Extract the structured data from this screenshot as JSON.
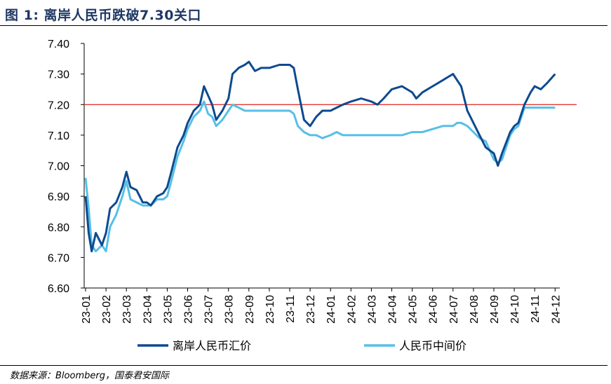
{
  "header": {
    "title": "图 1:  离岸人民币跌破7.30关口"
  },
  "footer": {
    "source": "数据来源：Bloomberg，国泰君安国际"
  },
  "colors": {
    "offshore": "#0d4a8f",
    "central": "#56bfe8",
    "threshold": "#e02020"
  },
  "chart_data": {
    "type": "line",
    "title": "离岸人民币跌破7.30关口",
    "ylim": [
      6.6,
      7.4
    ],
    "yticks": [
      "6.60",
      "6.70",
      "6.80",
      "6.90",
      "7.00",
      "7.10",
      "7.20",
      "7.30",
      "7.40"
    ],
    "x": [
      "23-01",
      "23-02",
      "23-03",
      "23-04",
      "23-05",
      "23-06",
      "23-07",
      "23-08",
      "23-09",
      "23-10",
      "23-11",
      "23-12",
      "24-01",
      "24-02",
      "24-03",
      "24-04",
      "24-05",
      "24-06",
      "24-07",
      "24-08",
      "24-09",
      "24-10",
      "24-11",
      "24-12"
    ],
    "reference_line": {
      "y": 7.2
    },
    "legend_position": "bottom",
    "series": [
      {
        "name": "离岸人民币汇价",
        "points": [
          [
            0.0,
            6.9
          ],
          [
            0.15,
            6.78
          ],
          [
            0.3,
            6.72
          ],
          [
            0.5,
            6.78
          ],
          [
            0.8,
            6.74
          ],
          [
            1.0,
            6.78
          ],
          [
            1.2,
            6.86
          ],
          [
            1.5,
            6.88
          ],
          [
            1.8,
            6.93
          ],
          [
            2.0,
            6.98
          ],
          [
            2.2,
            6.93
          ],
          [
            2.5,
            6.92
          ],
          [
            2.8,
            6.88
          ],
          [
            3.0,
            6.88
          ],
          [
            3.2,
            6.87
          ],
          [
            3.5,
            6.9
          ],
          [
            3.8,
            6.91
          ],
          [
            4.0,
            6.93
          ],
          [
            4.2,
            6.98
          ],
          [
            4.5,
            7.06
          ],
          [
            4.8,
            7.1
          ],
          [
            5.0,
            7.14
          ],
          [
            5.3,
            7.18
          ],
          [
            5.6,
            7.2
          ],
          [
            5.8,
            7.26
          ],
          [
            6.0,
            7.23
          ],
          [
            6.2,
            7.2
          ],
          [
            6.4,
            7.15
          ],
          [
            6.7,
            7.18
          ],
          [
            7.0,
            7.22
          ],
          [
            7.2,
            7.3
          ],
          [
            7.5,
            7.32
          ],
          [
            7.8,
            7.33
          ],
          [
            8.0,
            7.34
          ],
          [
            8.3,
            7.31
          ],
          [
            8.6,
            7.32
          ],
          [
            9.0,
            7.32
          ],
          [
            9.5,
            7.33
          ],
          [
            10.0,
            7.33
          ],
          [
            10.2,
            7.32
          ],
          [
            10.4,
            7.25
          ],
          [
            10.7,
            7.15
          ],
          [
            11.0,
            7.13
          ],
          [
            11.3,
            7.16
          ],
          [
            11.6,
            7.18
          ],
          [
            12.0,
            7.18
          ],
          [
            12.3,
            7.19
          ],
          [
            12.6,
            7.2
          ],
          [
            13.0,
            7.21
          ],
          [
            13.5,
            7.22
          ],
          [
            14.0,
            7.21
          ],
          [
            14.3,
            7.2
          ],
          [
            14.6,
            7.22
          ],
          [
            15.0,
            7.25
          ],
          [
            15.5,
            7.26
          ],
          [
            16.0,
            7.24
          ],
          [
            16.2,
            7.22
          ],
          [
            16.5,
            7.24
          ],
          [
            17.0,
            7.26
          ],
          [
            17.5,
            7.28
          ],
          [
            18.0,
            7.3
          ],
          [
            18.2,
            7.28
          ],
          [
            18.4,
            7.26
          ],
          [
            18.7,
            7.18
          ],
          [
            19.0,
            7.14
          ],
          [
            19.3,
            7.1
          ],
          [
            19.6,
            7.06
          ],
          [
            20.0,
            7.04
          ],
          [
            20.2,
            7.0
          ],
          [
            20.4,
            7.04
          ],
          [
            20.8,
            7.11
          ],
          [
            21.0,
            7.13
          ],
          [
            21.2,
            7.14
          ],
          [
            21.5,
            7.2
          ],
          [
            21.8,
            7.24
          ],
          [
            22.0,
            7.26
          ],
          [
            22.3,
            7.25
          ],
          [
            22.6,
            7.27
          ],
          [
            23.0,
            7.3
          ]
        ]
      },
      {
        "name": "人民币中间价",
        "points": [
          [
            0.0,
            6.96
          ],
          [
            0.15,
            6.86
          ],
          [
            0.3,
            6.74
          ],
          [
            0.5,
            6.72
          ],
          [
            0.8,
            6.74
          ],
          [
            1.0,
            6.72
          ],
          [
            1.2,
            6.8
          ],
          [
            1.5,
            6.84
          ],
          [
            1.8,
            6.9
          ],
          [
            2.0,
            6.95
          ],
          [
            2.2,
            6.89
          ],
          [
            2.5,
            6.88
          ],
          [
            2.8,
            6.87
          ],
          [
            3.0,
            6.87
          ],
          [
            3.2,
            6.87
          ],
          [
            3.5,
            6.89
          ],
          [
            3.8,
            6.89
          ],
          [
            4.0,
            6.9
          ],
          [
            4.2,
            6.95
          ],
          [
            4.5,
            7.03
          ],
          [
            4.8,
            7.08
          ],
          [
            5.0,
            7.12
          ],
          [
            5.3,
            7.16
          ],
          [
            5.6,
            7.18
          ],
          [
            5.8,
            7.21
          ],
          [
            6.0,
            7.17
          ],
          [
            6.2,
            7.16
          ],
          [
            6.4,
            7.13
          ],
          [
            6.7,
            7.15
          ],
          [
            7.0,
            7.18
          ],
          [
            7.2,
            7.2
          ],
          [
            7.5,
            7.19
          ],
          [
            7.8,
            7.18
          ],
          [
            8.0,
            7.18
          ],
          [
            8.3,
            7.18
          ],
          [
            8.6,
            7.18
          ],
          [
            9.0,
            7.18
          ],
          [
            9.5,
            7.18
          ],
          [
            10.0,
            7.18
          ],
          [
            10.2,
            7.17
          ],
          [
            10.4,
            7.13
          ],
          [
            10.7,
            7.11
          ],
          [
            11.0,
            7.1
          ],
          [
            11.3,
            7.1
          ],
          [
            11.6,
            7.09
          ],
          [
            12.0,
            7.1
          ],
          [
            12.3,
            7.11
          ],
          [
            12.6,
            7.1
          ],
          [
            13.0,
            7.1
          ],
          [
            13.5,
            7.1
          ],
          [
            14.0,
            7.1
          ],
          [
            14.3,
            7.1
          ],
          [
            14.6,
            7.1
          ],
          [
            15.0,
            7.1
          ],
          [
            15.5,
            7.1
          ],
          [
            16.0,
            7.11
          ],
          [
            16.2,
            7.11
          ],
          [
            16.5,
            7.11
          ],
          [
            17.0,
            7.12
          ],
          [
            17.5,
            7.13
          ],
          [
            18.0,
            7.13
          ],
          [
            18.2,
            7.14
          ],
          [
            18.4,
            7.14
          ],
          [
            18.7,
            7.13
          ],
          [
            19.0,
            7.11
          ],
          [
            19.3,
            7.09
          ],
          [
            19.6,
            7.08
          ],
          [
            20.0,
            7.02
          ],
          [
            20.2,
            7.01
          ],
          [
            20.4,
            7.02
          ],
          [
            20.8,
            7.1
          ],
          [
            21.0,
            7.12
          ],
          [
            21.2,
            7.13
          ],
          [
            21.5,
            7.19
          ],
          [
            21.8,
            7.19
          ],
          [
            22.0,
            7.19
          ],
          [
            22.3,
            7.19
          ],
          [
            22.6,
            7.19
          ],
          [
            23.0,
            7.19
          ]
        ]
      }
    ]
  }
}
